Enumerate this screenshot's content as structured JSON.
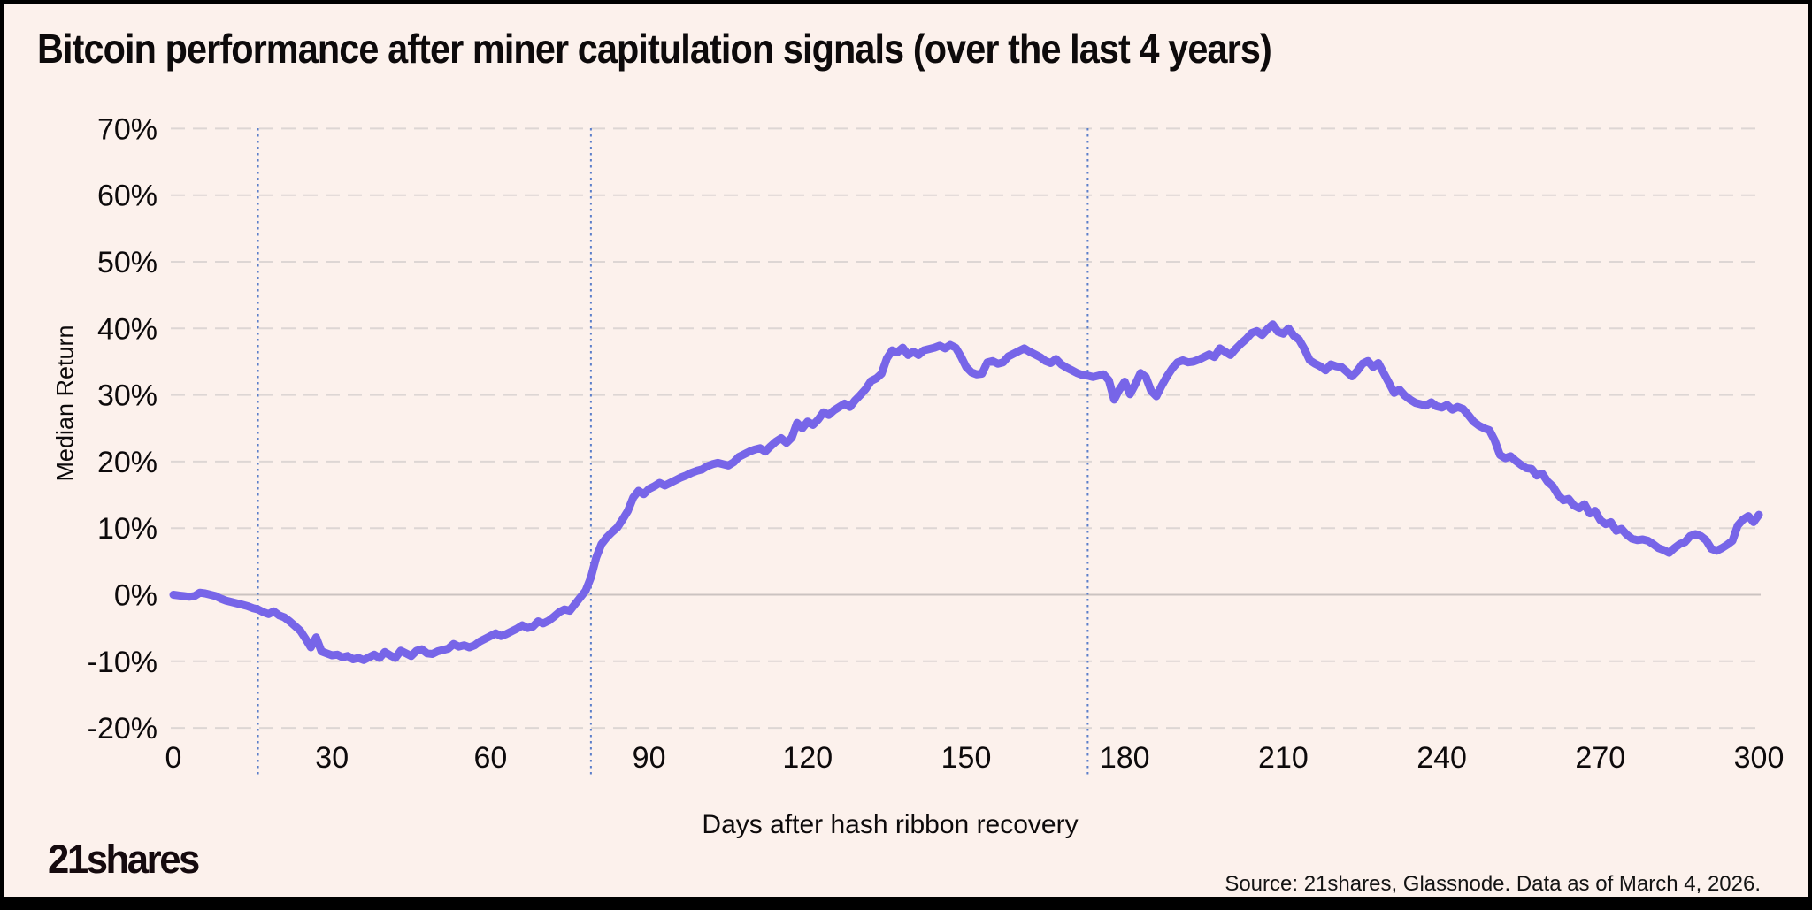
{
  "header": {
    "title": "Bitcoin performance after miner capitulation signals (over the last 4 years)"
  },
  "branding": {
    "logo_text": "21shares",
    "source_note": "Source: 21shares, Glassnode. Data as of March 4, 2026."
  },
  "colors": {
    "background": "#fcf1ec",
    "line": "#7765e8",
    "event_line": "#5c7fca",
    "grid_dashed": "#ddd6d4",
    "zero_line": "#cbc3c1",
    "text": "#0d0a0b"
  },
  "chart_data": {
    "type": "line",
    "title": "Bitcoin performance after miner capitulation signals (over the last 4 years)",
    "xlabel": "Days after hash ribbon recovery",
    "ylabel": "Median Return",
    "xlim": [
      0,
      300
    ],
    "ylim_pct": [
      -20,
      70
    ],
    "grid": "horizontal-dashed",
    "legend": "none",
    "x_ticks": [
      {
        "value": 0,
        "label": "0"
      },
      {
        "value": 30,
        "label": "30"
      },
      {
        "value": 60,
        "label": "60"
      },
      {
        "value": 90,
        "label": "90"
      },
      {
        "value": 120,
        "label": "120"
      },
      {
        "value": 150,
        "label": "150"
      },
      {
        "value": 180,
        "label": "180"
      },
      {
        "value": 210,
        "label": "210"
      },
      {
        "value": 240,
        "label": "240"
      },
      {
        "value": 270,
        "label": "270"
      },
      {
        "value": 300,
        "label": "300"
      }
    ],
    "y_ticks": [
      {
        "value": 70,
        "label": "70%"
      },
      {
        "value": 60,
        "label": "60%"
      },
      {
        "value": 50,
        "label": "50%"
      },
      {
        "value": 40,
        "label": "40%"
      },
      {
        "value": 30,
        "label": "30%"
      },
      {
        "value": 20,
        "label": "20%"
      },
      {
        "value": 10,
        "label": "10%"
      },
      {
        "value": 0,
        "label": "0%"
      },
      {
        "value": -10,
        "label": "-10%"
      },
      {
        "value": -20,
        "label": "-20%"
      }
    ],
    "event_vlines_days": [
      16,
      79,
      173
    ],
    "series": [
      {
        "name": "Median Return",
        "points": [
          [
            0,
            0
          ],
          [
            1,
            -0.1
          ],
          [
            2,
            -0.2
          ],
          [
            3,
            -0.3
          ],
          [
            4,
            -0.2
          ],
          [
            5,
            0.3
          ],
          [
            6,
            0.2
          ],
          [
            7,
            0.0
          ],
          [
            8,
            -0.2
          ],
          [
            9,
            -0.6
          ],
          [
            10,
            -0.9
          ],
          [
            11,
            -1.1
          ],
          [
            12,
            -1.3
          ],
          [
            13,
            -1.5
          ],
          [
            14,
            -1.7
          ],
          [
            15,
            -2.0
          ],
          [
            16,
            -2.2
          ],
          [
            17,
            -2.6
          ],
          [
            18,
            -2.9
          ],
          [
            19,
            -2.5
          ],
          [
            20,
            -3.1
          ],
          [
            21,
            -3.4
          ],
          [
            22,
            -4.0
          ],
          [
            23,
            -4.7
          ],
          [
            24,
            -5.4
          ],
          [
            25,
            -6.6
          ],
          [
            26,
            -7.9
          ],
          [
            27,
            -6.4
          ],
          [
            28,
            -8.5
          ],
          [
            29,
            -8.8
          ],
          [
            30,
            -9.1
          ],
          [
            31,
            -9.0
          ],
          [
            32,
            -9.4
          ],
          [
            33,
            -9.2
          ],
          [
            34,
            -9.7
          ],
          [
            35,
            -9.5
          ],
          [
            36,
            -9.8
          ],
          [
            37,
            -9.4
          ],
          [
            38,
            -9.0
          ],
          [
            39,
            -9.5
          ],
          [
            40,
            -8.6
          ],
          [
            41,
            -9.1
          ],
          [
            42,
            -9.5
          ],
          [
            43,
            -8.4
          ],
          [
            44,
            -8.8
          ],
          [
            45,
            -9.2
          ],
          [
            46,
            -8.4
          ],
          [
            47,
            -8.2
          ],
          [
            48,
            -8.8
          ],
          [
            49,
            -8.9
          ],
          [
            50,
            -8.5
          ],
          [
            51,
            -8.3
          ],
          [
            52,
            -8.1
          ],
          [
            53,
            -7.4
          ],
          [
            54,
            -7.8
          ],
          [
            55,
            -7.6
          ],
          [
            56,
            -7.9
          ],
          [
            57,
            -7.6
          ],
          [
            58,
            -7.0
          ],
          [
            59,
            -6.6
          ],
          [
            60,
            -6.2
          ],
          [
            61,
            -5.8
          ],
          [
            62,
            -6.2
          ],
          [
            63,
            -5.9
          ],
          [
            64,
            -5.5
          ],
          [
            65,
            -5.1
          ],
          [
            66,
            -4.6
          ],
          [
            67,
            -5.0
          ],
          [
            68,
            -4.8
          ],
          [
            69,
            -4.0
          ],
          [
            70,
            -4.3
          ],
          [
            71,
            -3.9
          ],
          [
            72,
            -3.3
          ],
          [
            73,
            -2.6
          ],
          [
            74,
            -2.2
          ],
          [
            75,
            -2.4
          ],
          [
            76,
            -1.4
          ],
          [
            77,
            -0.4
          ],
          [
            78,
            0.6
          ],
          [
            79,
            2.6
          ],
          [
            80,
            5.6
          ],
          [
            81,
            7.6
          ],
          [
            82,
            8.6
          ],
          [
            83,
            9.4
          ],
          [
            84,
            10.1
          ],
          [
            85,
            11.3
          ],
          [
            86,
            12.6
          ],
          [
            87,
            14.6
          ],
          [
            88,
            15.6
          ],
          [
            89,
            15.1
          ],
          [
            90,
            15.9
          ],
          [
            91,
            16.3
          ],
          [
            92,
            16.8
          ],
          [
            93,
            16.4
          ],
          [
            94,
            16.8
          ],
          [
            95,
            17.2
          ],
          [
            96,
            17.6
          ],
          [
            97,
            17.9
          ],
          [
            98,
            18.3
          ],
          [
            99,
            18.6
          ],
          [
            100,
            18.8
          ],
          [
            101,
            19.3
          ],
          [
            102,
            19.6
          ],
          [
            103,
            19.8
          ],
          [
            104,
            19.6
          ],
          [
            105,
            19.4
          ],
          [
            106,
            19.9
          ],
          [
            107,
            20.7
          ],
          [
            108,
            21.1
          ],
          [
            109,
            21.5
          ],
          [
            110,
            21.8
          ],
          [
            111,
            22.0
          ],
          [
            112,
            21.5
          ],
          [
            113,
            22.3
          ],
          [
            114,
            23.0
          ],
          [
            115,
            23.5
          ],
          [
            116,
            22.8
          ],
          [
            117,
            23.6
          ],
          [
            118,
            25.8
          ],
          [
            119,
            25.0
          ],
          [
            120,
            26.0
          ],
          [
            121,
            25.5
          ],
          [
            122,
            26.3
          ],
          [
            123,
            27.4
          ],
          [
            124,
            27.0
          ],
          [
            125,
            27.7
          ],
          [
            126,
            28.2
          ],
          [
            127,
            28.7
          ],
          [
            128,
            28.2
          ],
          [
            129,
            29.2
          ],
          [
            130,
            30.0
          ],
          [
            131,
            30.9
          ],
          [
            132,
            32.1
          ],
          [
            133,
            32.5
          ],
          [
            134,
            33.2
          ],
          [
            135,
            35.5
          ],
          [
            136,
            36.7
          ],
          [
            137,
            36.4
          ],
          [
            138,
            37.1
          ],
          [
            139,
            36.0
          ],
          [
            140,
            36.5
          ],
          [
            141,
            36.0
          ],
          [
            142,
            36.7
          ],
          [
            143,
            36.9
          ],
          [
            144,
            37.1
          ],
          [
            145,
            37.4
          ],
          [
            146,
            37.0
          ],
          [
            147,
            37.5
          ],
          [
            148,
            37.1
          ],
          [
            149,
            35.8
          ],
          [
            150,
            34.2
          ],
          [
            151,
            33.4
          ],
          [
            152,
            33.1
          ],
          [
            153,
            33.2
          ],
          [
            154,
            34.9
          ],
          [
            155,
            35.1
          ],
          [
            156,
            34.7
          ],
          [
            157,
            34.9
          ],
          [
            158,
            35.8
          ],
          [
            159,
            36.2
          ],
          [
            160,
            36.6
          ],
          [
            161,
            37.0
          ],
          [
            162,
            36.5
          ],
          [
            163,
            36.1
          ],
          [
            164,
            35.7
          ],
          [
            165,
            35.1
          ],
          [
            166,
            34.8
          ],
          [
            167,
            35.4
          ],
          [
            168,
            34.6
          ],
          [
            169,
            34.1
          ],
          [
            170,
            33.7
          ],
          [
            171,
            33.3
          ],
          [
            172,
            33.0
          ],
          [
            173,
            32.9
          ],
          [
            174,
            32.7
          ],
          [
            175,
            32.9
          ],
          [
            176,
            33.1
          ],
          [
            177,
            32.2
          ],
          [
            178,
            29.3
          ],
          [
            179,
            30.8
          ],
          [
            180,
            32.0
          ],
          [
            181,
            30.1
          ],
          [
            182,
            31.6
          ],
          [
            183,
            33.3
          ],
          [
            184,
            32.7
          ],
          [
            185,
            30.6
          ],
          [
            186,
            29.8
          ],
          [
            187,
            31.4
          ],
          [
            188,
            32.8
          ],
          [
            189,
            34.0
          ],
          [
            190,
            34.9
          ],
          [
            191,
            35.2
          ],
          [
            192,
            34.9
          ],
          [
            193,
            35.0
          ],
          [
            194,
            35.3
          ],
          [
            195,
            35.7
          ],
          [
            196,
            36.1
          ],
          [
            197,
            35.7
          ],
          [
            198,
            37.0
          ],
          [
            199,
            36.5
          ],
          [
            200,
            36.0
          ],
          [
            201,
            36.9
          ],
          [
            202,
            37.7
          ],
          [
            203,
            38.4
          ],
          [
            204,
            39.3
          ],
          [
            205,
            39.6
          ],
          [
            206,
            39.0
          ],
          [
            207,
            39.9
          ],
          [
            208,
            40.6
          ],
          [
            209,
            39.5
          ],
          [
            210,
            39.2
          ],
          [
            211,
            40.0
          ],
          [
            212,
            38.9
          ],
          [
            213,
            38.3
          ],
          [
            214,
            36.9
          ],
          [
            215,
            35.2
          ],
          [
            216,
            34.7
          ],
          [
            217,
            34.3
          ],
          [
            218,
            33.7
          ],
          [
            219,
            34.6
          ],
          [
            220,
            34.3
          ],
          [
            221,
            34.2
          ],
          [
            222,
            33.5
          ],
          [
            223,
            32.8
          ],
          [
            224,
            33.6
          ],
          [
            225,
            34.7
          ],
          [
            226,
            35.1
          ],
          [
            227,
            34.2
          ],
          [
            228,
            34.8
          ],
          [
            229,
            33.3
          ],
          [
            230,
            31.8
          ],
          [
            231,
            30.3
          ],
          [
            232,
            30.8
          ],
          [
            233,
            29.9
          ],
          [
            234,
            29.3
          ],
          [
            235,
            28.8
          ],
          [
            236,
            28.6
          ],
          [
            237,
            28.4
          ],
          [
            238,
            28.9
          ],
          [
            239,
            28.3
          ],
          [
            240,
            28.1
          ],
          [
            241,
            28.5
          ],
          [
            242,
            27.8
          ],
          [
            243,
            28.2
          ],
          [
            244,
            27.9
          ],
          [
            245,
            27.0
          ],
          [
            246,
            26.0
          ],
          [
            247,
            25.4
          ],
          [
            248,
            25.0
          ],
          [
            249,
            24.7
          ],
          [
            250,
            23.2
          ],
          [
            251,
            21.0
          ],
          [
            252,
            20.5
          ],
          [
            253,
            20.8
          ],
          [
            254,
            20.1
          ],
          [
            255,
            19.5
          ],
          [
            256,
            19.0
          ],
          [
            257,
            18.9
          ],
          [
            258,
            17.9
          ],
          [
            259,
            18.2
          ],
          [
            260,
            17.0
          ],
          [
            261,
            16.3
          ],
          [
            262,
            15.0
          ],
          [
            263,
            14.2
          ],
          [
            264,
            14.4
          ],
          [
            265,
            13.4
          ],
          [
            266,
            13.0
          ],
          [
            267,
            13.6
          ],
          [
            268,
            12.2
          ],
          [
            269,
            12.6
          ],
          [
            270,
            11.2
          ],
          [
            271,
            10.6
          ],
          [
            272,
            10.9
          ],
          [
            273,
            9.6
          ],
          [
            274,
            9.9
          ],
          [
            275,
            9.0
          ],
          [
            276,
            8.4
          ],
          [
            277,
            8.2
          ],
          [
            278,
            8.3
          ],
          [
            279,
            8.1
          ],
          [
            280,
            7.6
          ],
          [
            281,
            7.0
          ],
          [
            282,
            6.7
          ],
          [
            283,
            6.3
          ],
          [
            284,
            7.0
          ],
          [
            285,
            7.6
          ],
          [
            286,
            7.9
          ],
          [
            287,
            8.8
          ],
          [
            288,
            9.1
          ],
          [
            289,
            8.8
          ],
          [
            290,
            8.2
          ],
          [
            291,
            6.9
          ],
          [
            292,
            6.6
          ],
          [
            293,
            7.0
          ],
          [
            294,
            7.5
          ],
          [
            295,
            8.1
          ],
          [
            296,
            10.4
          ],
          [
            297,
            11.3
          ],
          [
            298,
            11.8
          ],
          [
            299,
            10.9
          ],
          [
            300,
            12.0
          ]
        ]
      }
    ]
  }
}
